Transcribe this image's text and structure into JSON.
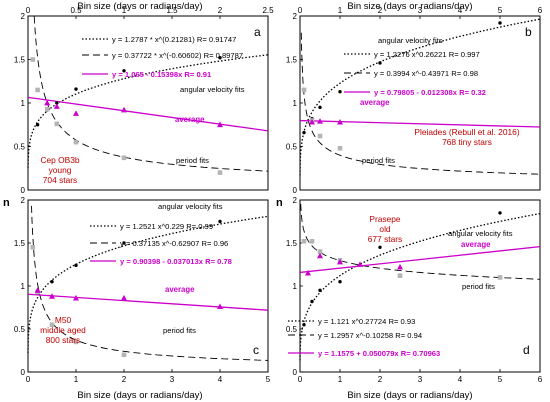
{
  "top_xlabel": "Bin size (days or radians/day)",
  "bottom_xlabel": "Bin size (days or radians/day)",
  "ylabel": "n",
  "colors": {
    "magenta": "#cc00cc",
    "red": "#c00000",
    "black": "#000000",
    "gray": "#b4b4b4",
    "frame": "#000000"
  },
  "chart_data": [
    {
      "id": "a",
      "type": "scatter",
      "panel_label": "a",
      "xlim": [
        0,
        2.5
      ],
      "ylim": [
        0,
        2
      ],
      "xticks": [
        "0",
        "0.5",
        "1",
        "1.5",
        "2",
        "2.5"
      ],
      "yticks": [
        "0",
        "0.5",
        "1",
        "1.5",
        "2"
      ],
      "xtick_values": [
        0,
        0.5,
        1,
        1.5,
        2,
        2.5
      ],
      "ytick_values": [
        0,
        0.5,
        1,
        1.5,
        2
      ],
      "fits": {
        "angular": {
          "a": 1.2787,
          "b": 0.21281
        },
        "period": {
          "a": 0.37722,
          "b": -0.60602
        },
        "average": {
          "intercept": 1.065,
          "slope": -0.15398
        }
      },
      "legend": [
        {
          "style": "dotted",
          "text": "y = 1.2787 * x^(0.21281)   R= 0.91747"
        },
        {
          "style": "dashed",
          "text": "y = 0.37722 * x^(-0.60602)   R= 0.89787"
        },
        {
          "style": "magenta",
          "text": "y = 1.065 - 0.15398x   R= 0.91"
        }
      ],
      "annotations": {
        "angular": "angular velocity fits",
        "average": "average",
        "period": "period fits",
        "red": [
          "Cep OB3b",
          "young",
          "704 stars"
        ]
      },
      "series": [
        {
          "name": "angular velocity fits",
          "marker": "dot",
          "x": [
            0.1,
            0.2,
            0.3,
            0.5,
            1.0,
            2.0
          ],
          "y": [
            0.75,
            0.92,
            1.0,
            1.16,
            1.37,
            1.52
          ]
        },
        {
          "name": "period fits",
          "marker": "gray-square",
          "x": [
            0.05,
            0.1,
            0.2,
            0.3,
            0.5,
            1.0,
            2.0
          ],
          "y": [
            1.5,
            1.15,
            0.93,
            0.76,
            0.55,
            0.37,
            0.2
          ]
        },
        {
          "name": "average",
          "marker": "magenta-triangle",
          "x": [
            0.2,
            0.3,
            0.5,
            1.0,
            2.0
          ],
          "y": [
            1.0,
            0.96,
            0.88,
            0.92,
            0.75
          ]
        }
      ]
    },
    {
      "id": "b",
      "type": "scatter",
      "panel_label": "b",
      "xlim": [
        0,
        6
      ],
      "ylim": [
        0,
        2
      ],
      "xticks": [
        "0",
        "1",
        "2",
        "3",
        "4",
        "5",
        "6"
      ],
      "yticks": [
        "0",
        "0.5",
        "1",
        "1.5",
        "2"
      ],
      "xtick_values": [
        0,
        1,
        2,
        3,
        4,
        5,
        6
      ],
      "ytick_values": [
        0,
        0.5,
        1,
        1.5,
        2
      ],
      "fits": {
        "angular": {
          "a": 1.2276,
          "b": 0.26221
        },
        "period": {
          "a": 0.3994,
          "b": -0.43971
        },
        "average": {
          "intercept": 0.79805,
          "slope": -0.012308
        }
      },
      "legend": [
        {
          "style": "dotted",
          "text": "y = 1.2276 x^0.26221   R= 0.997"
        },
        {
          "style": "dashed",
          "text": "y = 0.3994 x^-0.43971   R= 0.98"
        },
        {
          "style": "magenta",
          "text": "y = 0.79805 - 0.012308x   R= 0.32"
        }
      ],
      "annotations": {
        "angular": "angular velocity fits",
        "average": "average",
        "period": "period fits",
        "red": [
          "Pleiades (Rebull et al. 2016)",
          "768 tiny stars"
        ]
      },
      "series": [
        {
          "name": "angular velocity fits",
          "marker": "dot",
          "x": [
            0.1,
            0.3,
            0.5,
            1.0,
            2.0,
            5.0
          ],
          "y": [
            0.66,
            0.82,
            0.95,
            1.13,
            1.46,
            1.92
          ]
        },
        {
          "name": "period fits",
          "marker": "gray-square",
          "x": [
            0.1,
            0.3,
            0.5,
            1.0
          ],
          "y": [
            1.15,
            0.8,
            0.62,
            0.48
          ]
        },
        {
          "name": "average",
          "marker": "magenta-triangle",
          "x": [
            0.3,
            0.5,
            1.0
          ],
          "y": [
            0.78,
            0.79,
            0.78
          ]
        }
      ]
    },
    {
      "id": "c",
      "type": "scatter",
      "panel_label": "c",
      "xlim": [
        0,
        5
      ],
      "ylim": [
        0,
        2
      ],
      "xticks": [
        "0",
        "1",
        "2",
        "3",
        "4",
        "5"
      ],
      "yticks": [
        "0",
        "0.5",
        "1",
        "1.5",
        "2"
      ],
      "xtick_values": [
        0,
        1,
        2,
        3,
        4,
        5
      ],
      "ytick_values": [
        0,
        0.5,
        1,
        1.5,
        2
      ],
      "fits": {
        "angular": {
          "a": 1.2521,
          "b": 0.229
        },
        "period": {
          "a": 0.37135,
          "b": -0.62907
        },
        "average": {
          "intercept": 0.90398,
          "slope": -0.037013
        }
      },
      "legend": [
        {
          "style": "dotted",
          "text": "y = 1.2521 x^0.229   R= 0.99"
        },
        {
          "style": "dashed",
          "text": "y = 0.37135 x^-0.62907   R= 0.96"
        },
        {
          "style": "magenta",
          "text": "y = 0.90398 - 0.037013x   R= 0.78"
        }
      ],
      "annotations": {
        "angular": "angular velocity fits",
        "average": "average",
        "period": "period fits",
        "red": [
          "M50",
          "middle aged",
          "800 stars"
        ]
      },
      "series": [
        {
          "name": "angular velocity fits",
          "marker": "dot",
          "x": [
            0.2,
            0.5,
            1.0,
            2.0,
            4.0
          ],
          "y": [
            0.92,
            1.05,
            1.24,
            1.5,
            1.75
          ]
        },
        {
          "name": "period fits",
          "marker": "gray-square",
          "x": [
            0.1,
            0.2,
            0.5,
            1.0,
            2.0
          ],
          "y": [
            1.45,
            0.93,
            0.55,
            0.35,
            0.2
          ]
        },
        {
          "name": "average",
          "marker": "magenta-triangle",
          "x": [
            0.2,
            0.5,
            1.0,
            2.0,
            4.0
          ],
          "y": [
            0.95,
            0.88,
            0.86,
            0.86,
            0.76
          ]
        }
      ]
    },
    {
      "id": "d",
      "type": "scatter",
      "panel_label": "d",
      "xlim": [
        0,
        6
      ],
      "ylim": [
        0,
        2
      ],
      "xticks": [
        "0",
        "1",
        "2",
        "3",
        "4",
        "5",
        "6"
      ],
      "yticks": [
        "0",
        "0.5",
        "1",
        "1.5",
        "2"
      ],
      "xtick_values": [
        0,
        1,
        2,
        3,
        4,
        5,
        6
      ],
      "ytick_values": [
        0,
        0.5,
        1,
        1.5,
        2
      ],
      "fits": {
        "angular": {
          "a": 1.121,
          "b": 0.27724
        },
        "period": {
          "a": 1.2957,
          "b": -0.10258
        },
        "average": {
          "intercept": 1.1575,
          "slope": 0.050079
        }
      },
      "legend": [
        {
          "style": "dotted",
          "text": "y = 1.121 x^0.27724   R= 0.93"
        },
        {
          "style": "dashed",
          "text": "y = 1.2957 x^-0.10258   R= 0.94"
        },
        {
          "style": "magenta",
          "text": "y = 1.1575 + 0.050079x   R= 0.70963"
        }
      ],
      "annotations": {
        "angular": "angular velocity fits",
        "average": "average",
        "period": "period fits",
        "red": [
          "Prasepe",
          "old",
          "677 stars"
        ]
      },
      "series": [
        {
          "name": "angular velocity fits",
          "marker": "dot",
          "x": [
            0.1,
            0.3,
            0.5,
            1.0,
            2.0,
            5.0
          ],
          "y": [
            0.55,
            0.82,
            0.95,
            1.05,
            1.45,
            1.85
          ]
        },
        {
          "name": "period fits",
          "marker": "gray-square",
          "x": [
            0.1,
            0.3,
            0.5,
            1.0,
            2.5,
            5.0
          ],
          "y": [
            1.52,
            1.52,
            1.4,
            1.3,
            1.12,
            1.1
          ]
        },
        {
          "name": "average",
          "marker": "magenta-triangle",
          "x": [
            0.2,
            0.5,
            1.0,
            1.5,
            2.5
          ],
          "y": [
            1.15,
            1.35,
            1.28,
            1.25,
            1.22
          ]
        }
      ]
    }
  ]
}
